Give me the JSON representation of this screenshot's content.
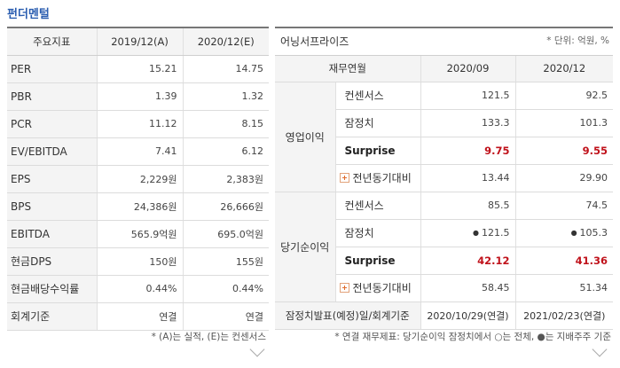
{
  "section_title": "펀더멘털",
  "left": {
    "headers": [
      "주요지표",
      "2019/12(A)",
      "2020/12(E)"
    ],
    "rows": [
      {
        "metric": "PER",
        "a": "15.21",
        "e": "14.75"
      },
      {
        "metric": "PBR",
        "a": "1.39",
        "e": "1.32"
      },
      {
        "metric": "PCR",
        "a": "11.12",
        "e": "8.15"
      },
      {
        "metric": "EV/EBITDA",
        "a": "7.41",
        "e": "6.12"
      },
      {
        "metric": "EPS",
        "a": "2,229원",
        "e": "2,383원"
      },
      {
        "metric": "BPS",
        "a": "24,386원",
        "e": "26,666원"
      },
      {
        "metric": "EBITDA",
        "a": "565.9억원",
        "e": "695.0억원"
      },
      {
        "metric": "현금DPS",
        "a": "150원",
        "e": "155원"
      },
      {
        "metric": "현금배당수익률",
        "a": "0.44%",
        "e": "0.44%"
      },
      {
        "metric": "회계기준",
        "a": "연결",
        "e": "연결"
      }
    ],
    "note": "* (A)는 실적, (E)는 컨센서스"
  },
  "right": {
    "title": "어닝서프라이즈",
    "unit": "* 단위: 억원, %",
    "subheaders": [
      "재무연월",
      "2020/09",
      "2020/12"
    ],
    "groups": [
      {
        "name": "영업이익",
        "rows": [
          {
            "item": "컨센서스",
            "v1": "121.5",
            "v2": "92.5"
          },
          {
            "item": "잠정치",
            "v1": "133.3",
            "v2": "101.3"
          },
          {
            "item": "Surprise",
            "v1": "9.75",
            "v2": "9.55"
          },
          {
            "item": "전년동기대비",
            "v1": "13.44",
            "v2": "29.90"
          }
        ]
      },
      {
        "name": "당기순이익",
        "rows": [
          {
            "item": "컨센서스",
            "v1": "85.5",
            "v2": "74.5"
          },
          {
            "item": "잠정치",
            "v1": "121.5",
            "v2": "105.3"
          },
          {
            "item": "Surprise",
            "v1": "42.12",
            "v2": "41.36"
          },
          {
            "item": "전년동기대비",
            "v1": "58.45",
            "v2": "51.34"
          }
        ]
      }
    ],
    "footer": {
      "label": "잠정치발표(예정)일/회계기준",
      "v1": "2020/10/29(연결)",
      "v2": "2021/02/23(연결)"
    },
    "dot_symbol": "●",
    "note": "* 연결 재무제표: 당기순이익 잠정치에서 ○는 전체, ●는 지배주주 기준"
  },
  "colors": {
    "accent": "#2a5db0",
    "surprise_red": "#c0121b"
  },
  "icons": {
    "expand": "chevron-down-icon",
    "yoy": "plus-icon"
  }
}
